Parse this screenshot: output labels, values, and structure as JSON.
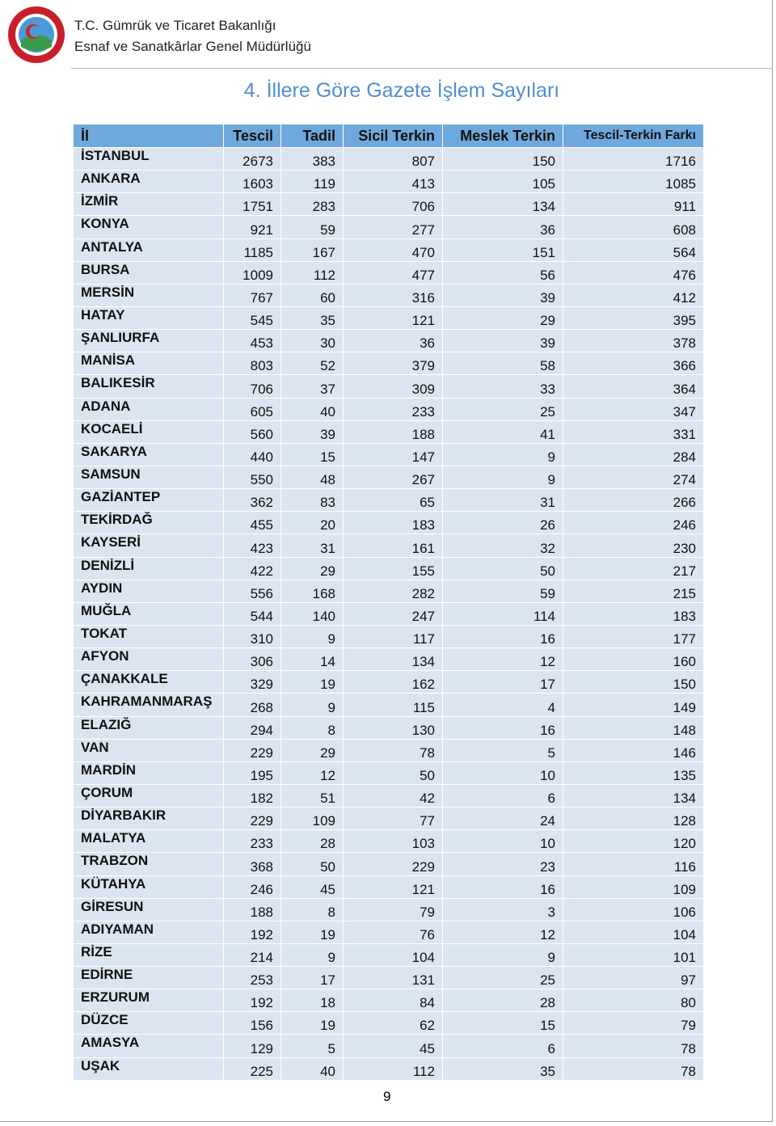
{
  "header": {
    "org_line1": "T.C. Gümrük ve Ticaret Bakanlığı",
    "org_line2": "Esnaf ve Sanatkârlar Genel Müdürlüğü"
  },
  "title": "4.  İllere Göre Gazete İşlem Sayıları",
  "table": {
    "columns": [
      "İl",
      "Tescil",
      "Tadil",
      "Sicil Terkin",
      "Meslek Terkin",
      "Tescil-Terkin Farkı"
    ],
    "rows": [
      [
        "İSTANBUL",
        2673,
        383,
        807,
        150,
        1716
      ],
      [
        "ANKARA",
        1603,
        119,
        413,
        105,
        1085
      ],
      [
        "İZMİR",
        1751,
        283,
        706,
        134,
        911
      ],
      [
        "KONYA",
        921,
        59,
        277,
        36,
        608
      ],
      [
        "ANTALYA",
        1185,
        167,
        470,
        151,
        564
      ],
      [
        "BURSA",
        1009,
        112,
        477,
        56,
        476
      ],
      [
        "MERSİN",
        767,
        60,
        316,
        39,
        412
      ],
      [
        "HATAY",
        545,
        35,
        121,
        29,
        395
      ],
      [
        "ŞANLIURFA",
        453,
        30,
        36,
        39,
        378
      ],
      [
        "MANİSA",
        803,
        52,
        379,
        58,
        366
      ],
      [
        "BALIKESİR",
        706,
        37,
        309,
        33,
        364
      ],
      [
        "ADANA",
        605,
        40,
        233,
        25,
        347
      ],
      [
        "KOCAELİ",
        560,
        39,
        188,
        41,
        331
      ],
      [
        "SAKARYA",
        440,
        15,
        147,
        9,
        284
      ],
      [
        "SAMSUN",
        550,
        48,
        267,
        9,
        274
      ],
      [
        "GAZİANTEP",
        362,
        83,
        65,
        31,
        266
      ],
      [
        "TEKİRDAĞ",
        455,
        20,
        183,
        26,
        246
      ],
      [
        "KAYSERİ",
        423,
        31,
        161,
        32,
        230
      ],
      [
        "DENİZLİ",
        422,
        29,
        155,
        50,
        217
      ],
      [
        "AYDIN",
        556,
        168,
        282,
        59,
        215
      ],
      [
        "MUĞLA",
        544,
        140,
        247,
        114,
        183
      ],
      [
        "TOKAT",
        310,
        9,
        117,
        16,
        177
      ],
      [
        "AFYON",
        306,
        14,
        134,
        12,
        160
      ],
      [
        "ÇANAKKALE",
        329,
        19,
        162,
        17,
        150
      ],
      [
        "KAHRAMANMARAŞ",
        268,
        9,
        115,
        4,
        149
      ],
      [
        "ELAZIĞ",
        294,
        8,
        130,
        16,
        148
      ],
      [
        "VAN",
        229,
        29,
        78,
        5,
        146
      ],
      [
        "MARDİN",
        195,
        12,
        50,
        10,
        135
      ],
      [
        "ÇORUM",
        182,
        51,
        42,
        6,
        134
      ],
      [
        "DİYARBAKIR",
        229,
        109,
        77,
        24,
        128
      ],
      [
        "MALATYA",
        233,
        28,
        103,
        10,
        120
      ],
      [
        "TRABZON",
        368,
        50,
        229,
        23,
        116
      ],
      [
        "KÜTAHYA",
        246,
        45,
        121,
        16,
        109
      ],
      [
        "GİRESUN",
        188,
        8,
        79,
        3,
        106
      ],
      [
        "ADIYAMAN",
        192,
        19,
        76,
        12,
        104
      ],
      [
        "RİZE",
        214,
        9,
        104,
        9,
        101
      ],
      [
        "EDİRNE",
        253,
        17,
        131,
        25,
        97
      ],
      [
        "ERZURUM",
        192,
        18,
        84,
        28,
        80
      ],
      [
        "DÜZCE",
        156,
        19,
        62,
        15,
        79
      ],
      [
        "AMASYA",
        129,
        5,
        45,
        6,
        78
      ],
      [
        "UŞAK",
        225,
        40,
        112,
        35,
        78
      ]
    ]
  },
  "page_number": "9"
}
